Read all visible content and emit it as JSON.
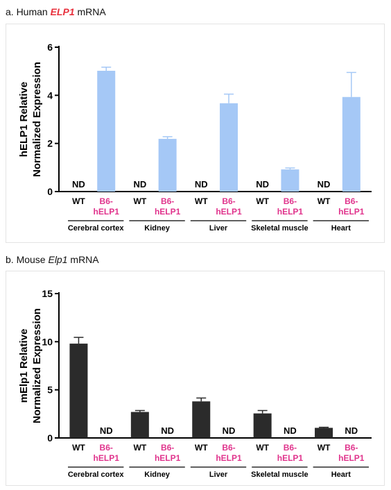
{
  "colors": {
    "human_bar": "#a5c8f6",
    "mouse_bar": "#2b2b2b",
    "tg_label": "#e0338c",
    "axis": "#000000"
  },
  "chart_data": [
    {
      "type": "bar",
      "title_prefix": "a. Human ",
      "title_gene": "ELP1",
      "title_suffix": " mRNA",
      "ylabel_line1": "hELP1 Relative",
      "ylabel_line2": "Normalized Expression",
      "ylim": [
        0,
        6
      ],
      "yticks": [
        "0",
        "2",
        "4",
        "6"
      ],
      "tissues": [
        "Cerebral cortex",
        "Kidney",
        "Liver",
        "Skeletal muscle",
        "Heart"
      ],
      "groups": [
        {
          "label_line1": "WT",
          "label_line2": ""
        },
        {
          "label_line1": "B6-",
          "label_line2": "hELP1"
        }
      ],
      "values": [
        [
          null,
          5.02
        ],
        [
          null,
          2.19
        ],
        [
          null,
          3.67
        ],
        [
          null,
          0.92
        ],
        [
          null,
          3.93
        ]
      ],
      "errors": [
        [
          null,
          0.15
        ],
        [
          null,
          0.09
        ],
        [
          null,
          0.38
        ],
        [
          null,
          0.06
        ],
        [
          null,
          1.02
        ]
      ],
      "nd_label": "ND"
    },
    {
      "type": "bar",
      "title_prefix": "b. Mouse ",
      "title_gene": "Elp1",
      "title_suffix": " mRNA",
      "ylabel_line1": "mElp1 Relative",
      "ylabel_line2": "Normalized Expression",
      "ylim": [
        0,
        15
      ],
      "yticks": [
        "0",
        "5",
        "10",
        "15"
      ],
      "tissues": [
        "Cerebral cortex",
        "Kidney",
        "Liver",
        "Skeletal muscle",
        "Heart"
      ],
      "groups": [
        {
          "label_line1": "WT",
          "label_line2": ""
        },
        {
          "label_line1": "B6-",
          "label_line2": "hELP1"
        }
      ],
      "values": [
        [
          9.8,
          null
        ],
        [
          2.7,
          null
        ],
        [
          3.8,
          null
        ],
        [
          2.55,
          null
        ],
        [
          1.05,
          null
        ]
      ],
      "errors": [
        [
          0.65,
          null
        ],
        [
          0.15,
          null
        ],
        [
          0.35,
          null
        ],
        [
          0.3,
          null
        ],
        [
          0.06,
          null
        ]
      ],
      "nd_label": "ND"
    }
  ]
}
